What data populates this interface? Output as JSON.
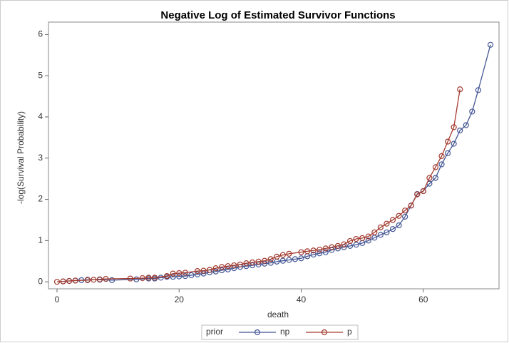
{
  "chart_data": {
    "type": "line",
    "title": "Negative Log of Estimated Survivor Functions",
    "x_label": "death",
    "y_label": "-log(Survival Probability)",
    "legend_title": "prior",
    "legend_position": "bottom",
    "xlim": [
      -1.4,
      72.4
    ],
    "xticks": [
      0,
      20,
      40,
      60
    ],
    "ylim": [
      -0.17,
      6.3
    ],
    "yticks": [
      0,
      1,
      2,
      3,
      4,
      5,
      6
    ],
    "grid": false,
    "series": [
      {
        "name": "np",
        "color": "#445694",
        "x": [
          1,
          2,
          3,
          4,
          5,
          7,
          9,
          13,
          15,
          16,
          17,
          18,
          19,
          20,
          21,
          22,
          23,
          24,
          25,
          26,
          27,
          28,
          29,
          30,
          31,
          32,
          33,
          34,
          35,
          36,
          37,
          38,
          39,
          40,
          41,
          42,
          43,
          44,
          45,
          46,
          47,
          48,
          49,
          50,
          51,
          52,
          53,
          54,
          55,
          56,
          57,
          58,
          59,
          60,
          61,
          62,
          63,
          64,
          65,
          66,
          67,
          68,
          69,
          71
        ],
        "values": [
          0.01,
          0.02,
          0.03,
          0.04,
          0.05,
          0.05,
          0.04,
          0.06,
          0.08,
          0.08,
          0.1,
          0.12,
          0.12,
          0.13,
          0.14,
          0.16,
          0.18,
          0.2,
          0.23,
          0.25,
          0.28,
          0.3,
          0.33,
          0.36,
          0.38,
          0.4,
          0.42,
          0.44,
          0.46,
          0.49,
          0.51,
          0.53,
          0.55,
          0.57,
          0.62,
          0.66,
          0.69,
          0.72,
          0.77,
          0.81,
          0.84,
          0.87,
          0.9,
          0.94,
          1.0,
          1.07,
          1.14,
          1.2,
          1.28,
          1.37,
          1.58,
          1.85,
          2.13,
          2.2,
          2.38,
          2.52,
          2.85,
          3.12,
          3.35,
          3.67,
          3.8,
          4.13,
          4.65,
          5.75
        ]
      },
      {
        "name": "p",
        "color": "#a23a2e",
        "x": [
          0,
          1,
          2,
          3,
          5,
          6,
          7,
          8,
          12,
          14,
          15,
          16,
          18,
          19,
          20,
          21,
          23,
          24,
          25,
          26,
          27,
          28,
          29,
          30,
          31,
          32,
          33,
          34,
          35,
          36,
          37,
          38,
          40,
          41,
          42,
          43,
          44,
          45,
          46,
          47,
          48,
          49,
          50,
          51,
          52,
          53,
          54,
          55,
          56,
          57,
          58,
          59,
          60,
          61,
          62,
          63,
          64,
          65,
          66
        ],
        "values": [
          0,
          0.01,
          0.02,
          0.03,
          0.04,
          0.05,
          0.06,
          0.07,
          0.08,
          0.09,
          0.1,
          0.1,
          0.14,
          0.2,
          0.21,
          0.22,
          0.26,
          0.27,
          0.29,
          0.33,
          0.36,
          0.38,
          0.4,
          0.42,
          0.45,
          0.47,
          0.49,
          0.51,
          0.55,
          0.61,
          0.65,
          0.68,
          0.72,
          0.74,
          0.76,
          0.78,
          0.81,
          0.84,
          0.87,
          0.91,
          0.99,
          1.04,
          1.06,
          1.1,
          1.2,
          1.32,
          1.41,
          1.5,
          1.6,
          1.73,
          1.85,
          2.12,
          2.2,
          2.52,
          2.78,
          3.05,
          3.4,
          3.75,
          4.67
        ]
      }
    ]
  }
}
